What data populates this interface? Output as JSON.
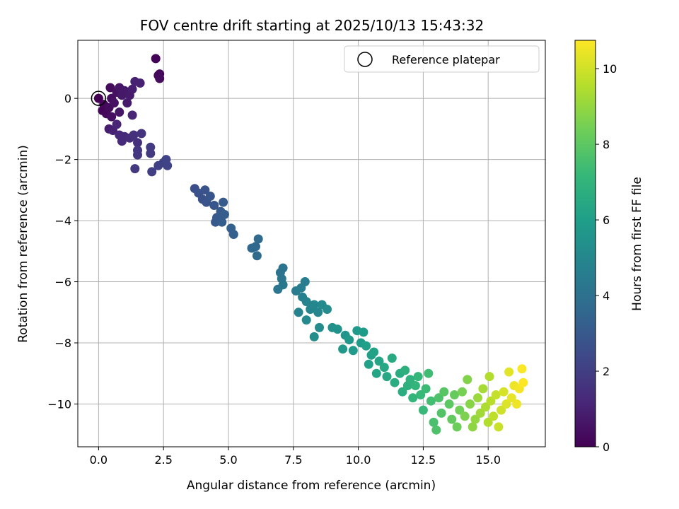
{
  "chart_data": {
    "type": "scatter",
    "title": "FOV centre drift starting at 2025/10/13 15:43:32",
    "xlabel": "Angular distance from reference (arcmin)",
    "ylabel": "Rotation from reference (arcmin)",
    "xlim": [
      -0.8,
      17.2
    ],
    "ylim": [
      -11.4,
      1.9
    ],
    "x_ticks": [
      0.0,
      2.5,
      5.0,
      7.5,
      10.0,
      12.5,
      15.0
    ],
    "x_tick_labels": [
      "0.0",
      "2.5",
      "5.0",
      "7.5",
      "10.0",
      "12.5",
      "15.0"
    ],
    "y_ticks": [
      0,
      -2,
      -4,
      -6,
      -8,
      -10
    ],
    "y_tick_labels": [
      "0",
      "−2",
      "−4",
      "−6",
      "−8",
      "−10"
    ],
    "grid": true,
    "legend": {
      "position": "top-right",
      "entries": [
        "Reference platepar"
      ]
    },
    "reference_point": {
      "x": 0.0,
      "y": 0.0
    },
    "colorbar": {
      "label": "Hours from first FF file",
      "range": [
        0,
        10.75
      ],
      "ticks": [
        0,
        2,
        4,
        6,
        8,
        10
      ],
      "tick_labels": [
        "0",
        "2",
        "4",
        "6",
        "8",
        "10"
      ],
      "colormap": "viridis",
      "colors": [
        "#440154",
        "#482878",
        "#3e4989",
        "#31688e",
        "#26828e",
        "#1f9e89",
        "#35b779",
        "#6ece58",
        "#b5de2b",
        "#fde725"
      ]
    },
    "marker_color_outline": "#000000",
    "points": [
      [
        2.2,
        1.3,
        0.1
      ],
      [
        2.35,
        0.8,
        0.2
      ],
      [
        2.3,
        0.75,
        0.25
      ],
      [
        2.35,
        0.65,
        0.3
      ],
      [
        0.0,
        0.0,
        0.0
      ],
      [
        0.15,
        -0.4,
        0.1
      ],
      [
        0.2,
        -0.2,
        0.15
      ],
      [
        0.3,
        -0.5,
        0.2
      ],
      [
        0.4,
        -0.3,
        0.3
      ],
      [
        0.45,
        0.35,
        0.3
      ],
      [
        0.5,
        0.0,
        0.4
      ],
      [
        0.5,
        -0.6,
        0.4
      ],
      [
        0.6,
        -0.15,
        0.5
      ],
      [
        0.7,
        0.2,
        0.5
      ],
      [
        0.8,
        0.35,
        0.6
      ],
      [
        0.8,
        -0.45,
        0.6
      ],
      [
        0.9,
        0.1,
        0.7
      ],
      [
        1.0,
        0.25,
        0.7
      ],
      [
        1.1,
        -0.15,
        0.8
      ],
      [
        1.2,
        0.1,
        0.8
      ],
      [
        1.3,
        0.3,
        0.9
      ],
      [
        1.4,
        0.55,
        1.0
      ],
      [
        1.6,
        0.5,
        1.0
      ],
      [
        1.3,
        -0.55,
        1.1
      ],
      [
        0.4,
        -1.0,
        0.9
      ],
      [
        0.55,
        -1.05,
        1.0
      ],
      [
        0.7,
        -0.85,
        1.1
      ],
      [
        0.8,
        -1.2,
        1.2
      ],
      [
        0.9,
        -1.4,
        1.3
      ],
      [
        1.0,
        -1.25,
        1.3
      ],
      [
        1.2,
        -1.3,
        1.4
      ],
      [
        1.35,
        -1.2,
        1.5
      ],
      [
        1.5,
        -1.45,
        1.5
      ],
      [
        1.65,
        -1.15,
        1.6
      ],
      [
        1.5,
        -1.85,
        1.7
      ],
      [
        1.5,
        -1.7,
        1.7
      ],
      [
        1.4,
        -2.3,
        1.8
      ],
      [
        2.0,
        -1.6,
        1.9
      ],
      [
        2.0,
        -1.8,
        1.9
      ],
      [
        2.05,
        -2.4,
        2.0
      ],
      [
        2.3,
        -2.2,
        2.1
      ],
      [
        2.5,
        -2.1,
        2.1
      ],
      [
        2.6,
        -2.0,
        2.2
      ],
      [
        2.65,
        -2.2,
        2.2
      ],
      [
        3.7,
        -2.95,
        2.6
      ],
      [
        3.85,
        -3.1,
        2.7
      ],
      [
        4.0,
        -3.3,
        2.7
      ],
      [
        4.1,
        -3.0,
        2.8
      ],
      [
        4.15,
        -3.4,
        2.8
      ],
      [
        4.3,
        -3.2,
        2.9
      ],
      [
        4.45,
        -3.5,
        2.9
      ],
      [
        4.55,
        -3.9,
        3.0
      ],
      [
        4.5,
        -4.05,
        3.0
      ],
      [
        4.7,
        -3.7,
        3.1
      ],
      [
        4.8,
        -3.4,
        3.1
      ],
      [
        4.75,
        -4.05,
        3.2
      ],
      [
        4.85,
        -3.8,
        3.2
      ],
      [
        5.1,
        -4.25,
        3.3
      ],
      [
        5.2,
        -4.45,
        3.3
      ],
      [
        5.9,
        -4.9,
        3.6
      ],
      [
        6.05,
        -4.85,
        3.6
      ],
      [
        6.1,
        -5.15,
        3.7
      ],
      [
        6.15,
        -4.6,
        3.7
      ],
      [
        7.0,
        -5.7,
        4.1
      ],
      [
        7.1,
        -5.55,
        4.1
      ],
      [
        7.05,
        -5.9,
        4.2
      ],
      [
        6.9,
        -6.25,
        4.2
      ],
      [
        7.1,
        -6.1,
        4.3
      ],
      [
        7.6,
        -6.3,
        4.5
      ],
      [
        7.8,
        -6.2,
        4.6
      ],
      [
        7.95,
        -6.0,
        4.6
      ],
      [
        7.85,
        -6.5,
        4.7
      ],
      [
        7.7,
        -7.0,
        4.8
      ],
      [
        8.0,
        -6.65,
        4.8
      ],
      [
        8.15,
        -6.9,
        4.9
      ],
      [
        8.3,
        -6.75,
        5.0
      ],
      [
        8.45,
        -7.0,
        5.0
      ],
      [
        8.6,
        -6.75,
        5.1
      ],
      [
        8.8,
        -6.9,
        5.2
      ],
      [
        8.0,
        -7.25,
        5.1
      ],
      [
        8.5,
        -7.5,
        5.2
      ],
      [
        8.3,
        -7.8,
        5.3
      ],
      [
        9.0,
        -7.5,
        5.4
      ],
      [
        9.2,
        -7.55,
        5.5
      ],
      [
        9.5,
        -7.75,
        5.6
      ],
      [
        9.65,
        -7.9,
        5.7
      ],
      [
        9.4,
        -8.2,
        5.7
      ],
      [
        9.8,
        -8.25,
        5.8
      ],
      [
        9.95,
        -7.6,
        5.8
      ],
      [
        10.1,
        -8.0,
        5.9
      ],
      [
        10.2,
        -7.65,
        5.9
      ],
      [
        10.3,
        -8.1,
        6.0
      ],
      [
        10.5,
        -8.4,
        6.0
      ],
      [
        10.4,
        -8.7,
        6.1
      ],
      [
        10.6,
        -8.3,
        6.2
      ],
      [
        10.8,
        -8.6,
        6.3
      ],
      [
        10.7,
        -9.0,
        6.3
      ],
      [
        11.0,
        -8.8,
        6.4
      ],
      [
        11.1,
        -9.1,
        6.4
      ],
      [
        11.3,
        -8.5,
        6.5
      ],
      [
        11.4,
        -9.3,
        6.6
      ],
      [
        11.6,
        -9.0,
        6.6
      ],
      [
        11.7,
        -9.6,
        6.7
      ],
      [
        11.8,
        -8.9,
        6.8
      ],
      [
        11.9,
        -9.4,
        6.8
      ],
      [
        12.0,
        -9.2,
        6.9
      ],
      [
        12.1,
        -9.8,
        7.0
      ],
      [
        12.2,
        -9.4,
        7.0
      ],
      [
        12.3,
        -9.1,
        7.1
      ],
      [
        12.4,
        -9.7,
        7.2
      ],
      [
        12.5,
        -10.2,
        7.2
      ],
      [
        12.6,
        -9.5,
        7.3
      ],
      [
        12.7,
        -9.0,
        7.4
      ],
      [
        12.8,
        -9.9,
        7.5
      ],
      [
        12.9,
        -10.6,
        7.6
      ],
      [
        13.0,
        -10.85,
        7.7
      ],
      [
        13.1,
        -9.8,
        7.7
      ],
      [
        13.2,
        -10.3,
        7.8
      ],
      [
        13.3,
        -9.6,
        7.9
      ],
      [
        13.5,
        -10.0,
        8.0
      ],
      [
        13.6,
        -10.5,
        8.1
      ],
      [
        13.7,
        -9.7,
        8.2
      ],
      [
        13.8,
        -10.75,
        8.3
      ],
      [
        13.9,
        -10.2,
        8.4
      ],
      [
        14.0,
        -9.6,
        8.5
      ],
      [
        14.1,
        -10.4,
        8.6
      ],
      [
        14.2,
        -9.2,
        8.7
      ],
      [
        14.3,
        -10.0,
        8.8
      ],
      [
        14.4,
        -10.75,
        8.9
      ],
      [
        14.5,
        -10.5,
        9.0
      ],
      [
        14.6,
        -9.8,
        9.1
      ],
      [
        14.7,
        -10.3,
        9.2
      ],
      [
        14.8,
        -9.5,
        9.3
      ],
      [
        14.9,
        -10.1,
        9.4
      ],
      [
        15.0,
        -10.6,
        9.5
      ],
      [
        15.05,
        -9.1,
        9.5
      ],
      [
        15.1,
        -9.9,
        9.6
      ],
      [
        15.2,
        -10.4,
        9.7
      ],
      [
        15.3,
        -9.7,
        9.8
      ],
      [
        15.4,
        -10.75,
        9.9
      ],
      [
        15.5,
        -10.2,
        10.0
      ],
      [
        15.6,
        -9.6,
        10.1
      ],
      [
        15.7,
        -10.0,
        10.2
      ],
      [
        15.8,
        -8.95,
        10.3
      ],
      [
        15.9,
        -9.8,
        10.4
      ],
      [
        16.0,
        -9.4,
        10.5
      ],
      [
        16.1,
        -10.0,
        10.5
      ],
      [
        16.2,
        -9.5,
        10.6
      ],
      [
        16.3,
        -8.85,
        10.7
      ],
      [
        16.35,
        -9.3,
        10.75
      ]
    ]
  }
}
